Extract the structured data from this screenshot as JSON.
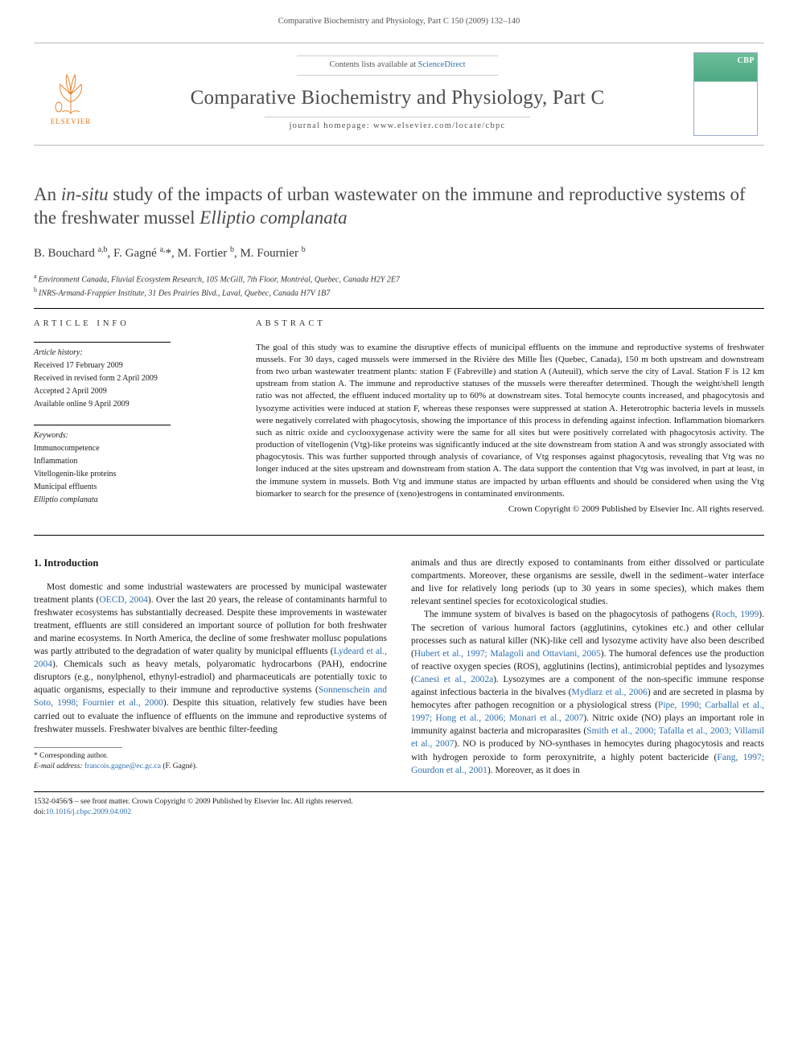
{
  "running_header": "Comparative Biochemistry and Physiology, Part C 150 (2009) 132–140",
  "masthead": {
    "contents_prefix": "Contents lists available at ",
    "contents_link": "ScienceDirect",
    "journal_name": "Comparative Biochemistry and Physiology, Part C",
    "homepage_prefix": "journal homepage: ",
    "homepage_url": "www.elsevier.com/locate/cbpc",
    "publisher_label": "ELSEVIER",
    "cover_badge": "CBP"
  },
  "article": {
    "title_html": "An <i>in-situ</i> study of the impacts of urban wastewater on the immune and reproductive systems of the freshwater mussel <i>Elliptio complanata</i>",
    "title_plain": "An in-situ study of the impacts of urban wastewater on the immune and reproductive systems of the freshwater mussel Elliptio complanata",
    "authors_html": "B. Bouchard <sup>a,b</sup>, F. Gagné <sup>a,</sup><span class='star'>*</span>, M. Fortier <sup>b</sup>, M. Fournier <sup>b</sup>",
    "affiliations": [
      {
        "key": "a",
        "text": "Environment Canada, Fluvial Ecosystem Research, 105 McGill, 7th Floor, Montréal, Quebec, Canada H2Y 2E7"
      },
      {
        "key": "b",
        "text": "INRS-Armand-Frappier Institute, 31 Des Prairies Blvd., Laval, Quebec, Canada H7V 1B7"
      }
    ]
  },
  "info": {
    "heading": "ARTICLE INFO",
    "history_label": "Article history:",
    "history": [
      "Received 17 February 2009",
      "Received in revised form 2 April 2009",
      "Accepted 2 April 2009",
      "Available online 9 April 2009"
    ],
    "keywords_label": "Keywords:",
    "keywords": [
      "Immunocompetence",
      "Inflammation",
      "Vitellogenin-like proteins",
      "Municipal effluents",
      "Elliptio complanata"
    ]
  },
  "abstract": {
    "heading": "ABSTRACT",
    "text": "The goal of this study was to examine the disruptive effects of municipal effluents on the immune and reproductive systems of freshwater mussels. For 30 days, caged mussels were immersed in the Rivière des Mille Îles (Quebec, Canada), 150 m both upstream and downstream from two urban wastewater treatment plants: station F (Fabreville) and station A (Auteuil), which serve the city of Laval. Station F is 12 km upstream from station A. The immune and reproductive statuses of the mussels were thereafter determined. Though the weight/shell length ratio was not affected, the effluent induced mortality up to 60% at downstream sites. Total hemocyte counts increased, and phagocytosis and lysozyme activities were induced at station F, whereas these responses were suppressed at station A. Heterotrophic bacteria levels in mussels were negatively correlated with phagocytosis, showing the importance of this process in defending against infection. Inflammation biomarkers such as nitric oxide and cyclooxygenase activity were the same for all sites but were positively correlated with phagocytosis activity. The production of vitellogenin (Vtg)-like proteins was significantly induced at the site downstream from station A and was strongly associated with phagocytosis. This was further supported through analysis of covariance, of Vtg responses against phagocytosis, revealing that Vtg was no longer induced at the sites upstream and downstream from station A. The data support the contention that Vtg was involved, in part at least, in the immune system in mussels. Both Vtg and immune status are impacted by urban effluents and should be considered when using the Vtg biomarker to search for the presence of (xeno)estrogens in contaminated environments.",
    "copyright": "Crown Copyright © 2009 Published by Elsevier Inc. All rights reserved."
  },
  "body": {
    "section_heading": "1. Introduction",
    "col1_html": "Most domestic and some industrial wastewaters are processed by municipal wastewater treatment plants (<a class='ref' href='#'>OECD, 2004</a>). Over the last 20 years, the release of contaminants harmful to freshwater ecosystems has substantially decreased. Despite these improvements in wastewater treatment, effluents are still considered an important source of pollution for both freshwater and marine ecosystems. In North America, the decline of some freshwater mollusc populations was partly attributed to the degradation of water quality by municipal effluents (<a class='ref' href='#'>Lydeard et al., 2004</a>). Chemicals such as heavy metals, polyaromatic hydrocarbons (PAH), endocrine disruptors (e.g., nonylphenol, ethynyl-estradiol) and pharmaceuticals are potentially toxic to aquatic organisms, especially to their immune and reproductive systems (<a class='ref' href='#'>Sonnenschein and Soto, 1998; Fournier et al., 2000</a>). Despite this situation, relatively few studies have been carried out to evaluate the influence of effluents on the immune and reproductive systems of freshwater mussels. Freshwater bivalves are benthic filter-feeding",
    "col2_html": "animals and thus are directly exposed to contaminants from either dissolved or particulate compartments. Moreover, these organisms are sessile, dwell in the sediment–water interface and live for relatively long periods (up to 30 years in some species), which makes them relevant sentinel species for ecotoxicological studies.<br>&nbsp;&nbsp;&nbsp;&nbsp;The immune system of bivalves is based on the phagocytosis of pathogens (<a class='ref' href='#'>Roch, 1999</a>). The secretion of various humoral factors (agglutinins, cytokines etc.) and other cellular processes such as natural killer (NK)-like cell and lysozyme activity have also been described (<a class='ref' href='#'>Hubert et al., 1997; Malagoli and Ottaviani, 2005</a>). The humoral defences use the production of reactive oxygen species (ROS), agglutinins (lectins), antimicrobial peptides and lysozymes (<a class='ref' href='#'>Canesi et al., 2002a</a>). Lysozymes are a component of the non-specific immune response against infectious bacteria in the bivalves (<a class='ref' href='#'>Mydlarz et al., 2006</a>) and are secreted in plasma by hemocytes after pathogen recognition or a physiological stress (<a class='ref' href='#'>Pipe, 1990; Carballal et al., 1997; Hong et al., 2006; Monari et al., 2007</a>). Nitric oxide (NO) plays an important role in immunity against bacteria and microparasites (<a class='ref' href='#'>Smith et al., 2000; Tafalla et al., 2003; Villamil et al., 2007</a>). NO is produced by NO-synthases in hemocytes during phagocytosis and reacts with hydrogen peroxide to form peroxynitrite, a highly potent bactericide (<a class='ref' href='#'>Fang, 1997; Gourdon et al., 2001</a>). Moreover, as it does in"
  },
  "corresponding": {
    "star_label": "* Corresponding author.",
    "email_label": "E-mail address:",
    "email": "francois.gagne@ec.gc.ca",
    "email_to": "(F. Gagné)."
  },
  "footer": {
    "line1": "1532-0456/$ – see front matter. Crown Copyright © 2009 Published by Elsevier Inc. All rights reserved.",
    "doi_prefix": "doi:",
    "doi": "10.1016/j.cbpc.2009.04.002"
  },
  "colors": {
    "link": "#2f6fb0",
    "elsevier_orange": "#e67817",
    "text": "#1a1a1a",
    "muted": "#555555",
    "rule": "#000000"
  },
  "typography": {
    "body_pt": 11.5,
    "abstract_pt": 11,
    "title_pt": 23,
    "journal_name_pt": 25,
    "meta_pt": 10,
    "footer_pt": 9.5
  }
}
